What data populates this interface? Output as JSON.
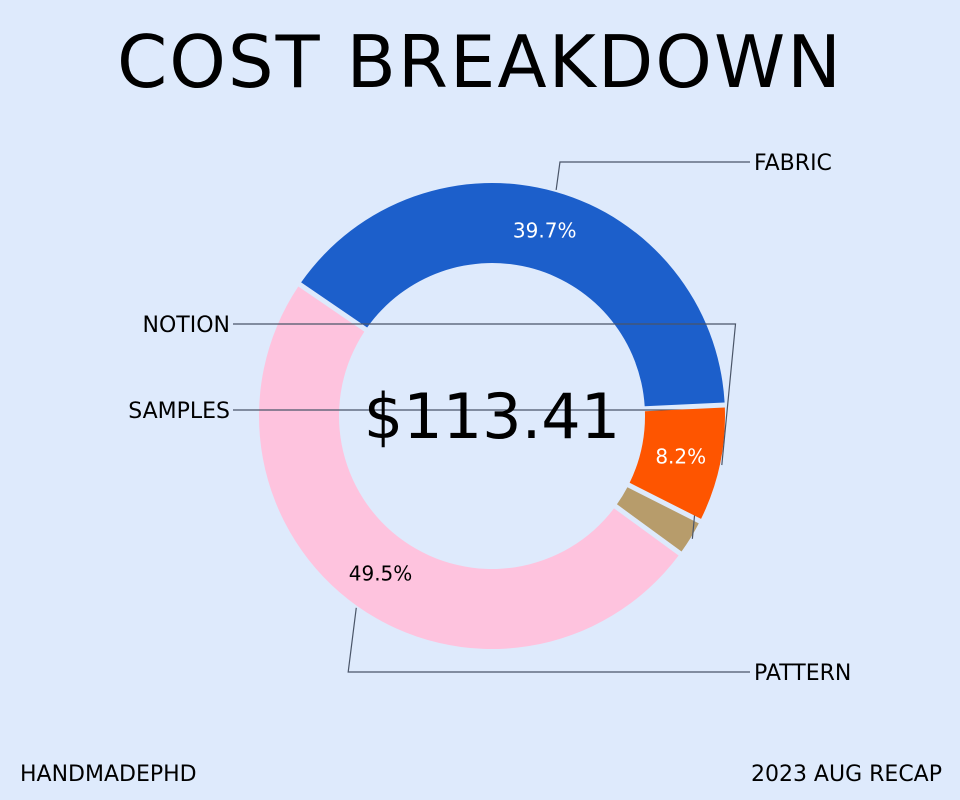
{
  "chart_data": {
    "type": "pie",
    "style": "donut",
    "title": "COST BREAKDOWN",
    "center_label": "$113.41",
    "slices": [
      {
        "name": "FABRIC",
        "value": 39.7,
        "value_label": "39.7%",
        "color": "#1c5fcb",
        "text_color": "#ffffff"
      },
      {
        "name": "PATTERN",
        "value": 49.5,
        "value_label": "49.5%",
        "color": "#fec3de",
        "text_color": "#000000"
      },
      {
        "name": "SAMPLES",
        "value": 2.6,
        "value_label": "",
        "color": "#b79c6b",
        "text_color": "#000000"
      },
      {
        "name": "NOTION",
        "value": 8.2,
        "value_label": "8.2%",
        "color": "#fe5500",
        "text_color": "#ffffff"
      }
    ]
  },
  "footer": {
    "left": "HANDMADEPHD",
    "right": "2023 AUG RECAP"
  },
  "colors": {
    "background": "#deeafc",
    "leader_line": "#4a5568"
  }
}
